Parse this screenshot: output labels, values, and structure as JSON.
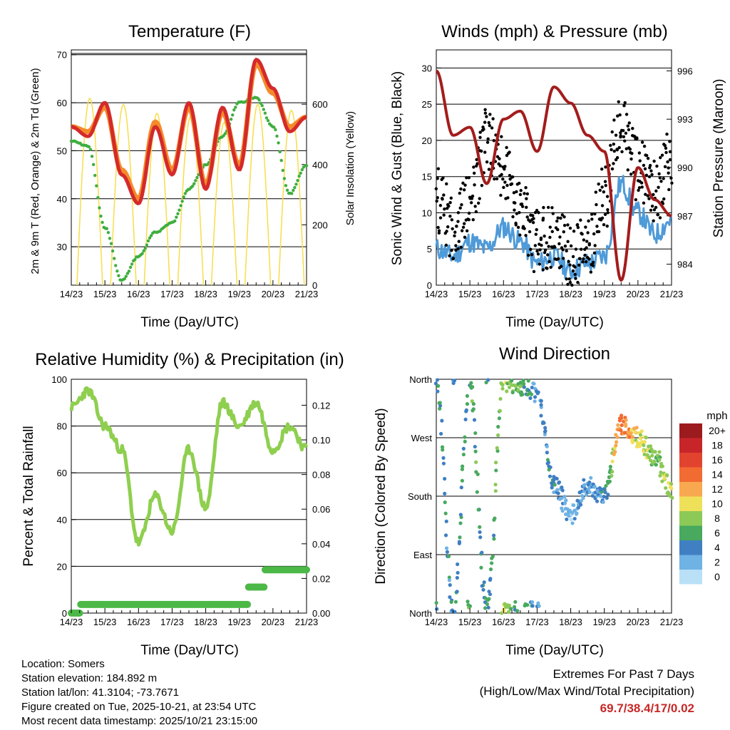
{
  "colors": {
    "red": "#d42a2a",
    "orange": "#f58a2a",
    "green_td": "#3fae3f",
    "yellow": "#f7dd4a",
    "black": "#000000",
    "blue": "#4f9ad8",
    "maroon": "#a31c1c",
    "rh_green": "#8fcf4f",
    "precip_green": "#4cb847",
    "extreme_red": "#c62828"
  },
  "x_tick_labels": [
    "14/23",
    "15/23",
    "16/23",
    "17/23",
    "18/23",
    "19/23",
    "20/23",
    "21/23"
  ],
  "x_axis_label": "Time (Day/UTC)",
  "charts": {
    "temperature": {
      "title": "Temperature (F)",
      "ylabel_left": "2m & 9m T (Red, Orange) & 2m Td (Green)",
      "ylabel_right": "Solar Insolation (Yellow)",
      "left_ticks": [
        "30",
        "40",
        "50",
        "60",
        "70"
      ],
      "right_ticks": [
        "0",
        "200",
        "400",
        "600"
      ]
    },
    "winds": {
      "title": "Winds (mph) & Pressure (mb)",
      "ylabel_left": "Sonic Wind & Gust (Blue, Black)",
      "ylabel_right": "Station Pressure (Maroon)",
      "left_ticks": [
        "0",
        "5",
        "10",
        "15",
        "20",
        "25",
        "30"
      ],
      "right_ticks": [
        "984",
        "987",
        "990",
        "993",
        "996"
      ]
    },
    "humidity": {
      "title": "Relative Humidity (%) & Precipitation (in)",
      "ylabel_left": "Percent & Total Rainfall",
      "left_ticks": [
        "0",
        "20",
        "40",
        "60",
        "80",
        "100"
      ],
      "right_ticks": [
        "0.00",
        "0.02",
        "0.04",
        "0.06",
        "0.08",
        "0.10",
        "0.12"
      ]
    },
    "direction": {
      "title": "Wind Direction",
      "ylabel_left": "Direction (Colored By Speed)",
      "left_ticks": [
        "North",
        "East",
        "South",
        "West",
        "North"
      ],
      "legend_title": "mph",
      "legend_labels": [
        "20+",
        "18",
        "16",
        "14",
        "12",
        "10",
        "8",
        "6",
        "4",
        "2",
        "0"
      ],
      "legend_colors": [
        "#9b1b1e",
        "#c8252a",
        "#e2432f",
        "#f26b32",
        "#f8a84f",
        "#efe05a",
        "#8cc957",
        "#48a95f",
        "#3f7fc2",
        "#6fb2e4",
        "#b9e0f7"
      ]
    }
  },
  "chart_data": [
    {
      "type": "line",
      "title": "Temperature (F)",
      "x": [
        0,
        0.5,
        1,
        1.5,
        2,
        2.5,
        3,
        3.5,
        4,
        4.5,
        5,
        5.5,
        6,
        6.5,
        7
      ],
      "series": [
        {
          "name": "2m T (Red)",
          "values": [
            55,
            53,
            60,
            45,
            39,
            55,
            45,
            60,
            42,
            59,
            46,
            69,
            63,
            54,
            57
          ]
        },
        {
          "name": "9m T (Orange)",
          "values": [
            55,
            54,
            59,
            46,
            40,
            56,
            46,
            59,
            43,
            58,
            47,
            68,
            62,
            55,
            57
          ]
        },
        {
          "name": "2m Td (Green)",
          "values": [
            52,
            51,
            34,
            23,
            28,
            33,
            35,
            42,
            47,
            53,
            60,
            61,
            55,
            41,
            47
          ]
        },
        {
          "name": "Solar Insolation (Yellow)",
          "values": [
            0,
            620,
            0,
            600,
            0,
            570,
            0,
            560,
            0,
            540,
            0,
            600,
            0,
            580,
            0
          ]
        }
      ],
      "xlabel": "Time (Day/UTC)",
      "ylim": [
        22,
        71
      ],
      "y2lim": [
        0,
        780
      ]
    },
    {
      "type": "scatter",
      "title": "Winds (mph) & Pressure (mb)",
      "x": [
        0,
        0.5,
        1,
        1.5,
        2,
        2.5,
        3,
        3.5,
        4,
        4.5,
        5,
        5.5,
        6,
        6.5,
        7
      ],
      "series": [
        {
          "name": "Sonic Wind (Blue)",
          "values": [
            5,
            4,
            6,
            5,
            8,
            6,
            3,
            4,
            2,
            3,
            4,
            14,
            10,
            7,
            9
          ]
        },
        {
          "name": "Gust (Black)",
          "values": [
            12,
            8,
            11,
            20,
            16,
            10,
            6,
            7,
            4,
            5,
            12,
            22,
            16,
            13,
            17
          ]
        },
        {
          "name": "Station Pressure (Maroon)",
          "values": [
            996,
            992,
            992.5,
            989,
            993,
            993.5,
            991,
            995,
            994,
            992,
            991,
            983,
            990,
            988,
            987
          ]
        }
      ],
      "xlabel": "Time (Day/UTC)",
      "ylim": [
        0,
        32.5
      ],
      "y2lim": [
        982.7,
        997.3
      ]
    },
    {
      "type": "line",
      "title": "Relative Humidity (%) & Precipitation (in)",
      "x": [
        0,
        0.5,
        1,
        1.5,
        2,
        2.5,
        3,
        3.5,
        4,
        4.5,
        5,
        5.5,
        6,
        6.5,
        7
      ],
      "series": [
        {
          "name": "Relative Humidity",
          "values": [
            88,
            95,
            80,
            70,
            30,
            50,
            35,
            70,
            45,
            90,
            80,
            90,
            70,
            80,
            70
          ]
        },
        {
          "name": "Total Precipitation",
          "values": [
            0.0,
            0.005,
            0.005,
            0.005,
            0.005,
            0.005,
            0.005,
            0.005,
            0.005,
            0.005,
            0.005,
            0.015,
            0.025,
            0.025,
            0.025
          ]
        }
      ],
      "xlabel": "Time (Day/UTC)",
      "ylim": [
        0,
        100
      ],
      "y2lim": [
        0,
        0.135
      ]
    },
    {
      "type": "scatter",
      "title": "Wind Direction",
      "x": [
        0,
        0.5,
        1,
        1.5,
        2,
        2.5,
        3,
        3.5,
        4,
        4.5,
        5,
        5.5,
        6,
        6.5,
        7
      ],
      "series": [
        {
          "name": "Direction (deg)",
          "values": [
            355,
            5,
            350,
            5,
            355,
            350,
            340,
            200,
            150,
            195,
            180,
            290,
            270,
            240,
            190
          ]
        }
      ],
      "xlabel": "Time (Day/UTC)",
      "ylim": [
        0,
        360
      ],
      "y_tick_labels": [
        "North",
        "East",
        "South",
        "West",
        "North"
      ]
    }
  ],
  "footer": {
    "location": "Location: Somers",
    "elevation": "Station elevation: 184.892 m",
    "latlon": "Station lat/lon: 41.3104; -73.7671",
    "created": "Figure created on Tue, 2025-10-21, at 23:54 UTC",
    "recent": "Most recent data timestamp: 2025/10/21 23:15:00",
    "extremes_title": "Extremes For Past 7 Days",
    "extremes_sub": "(High/Low/Max Wind/Total Precipitation)",
    "extremes_values": "69.7/38.4/17/0.02"
  }
}
